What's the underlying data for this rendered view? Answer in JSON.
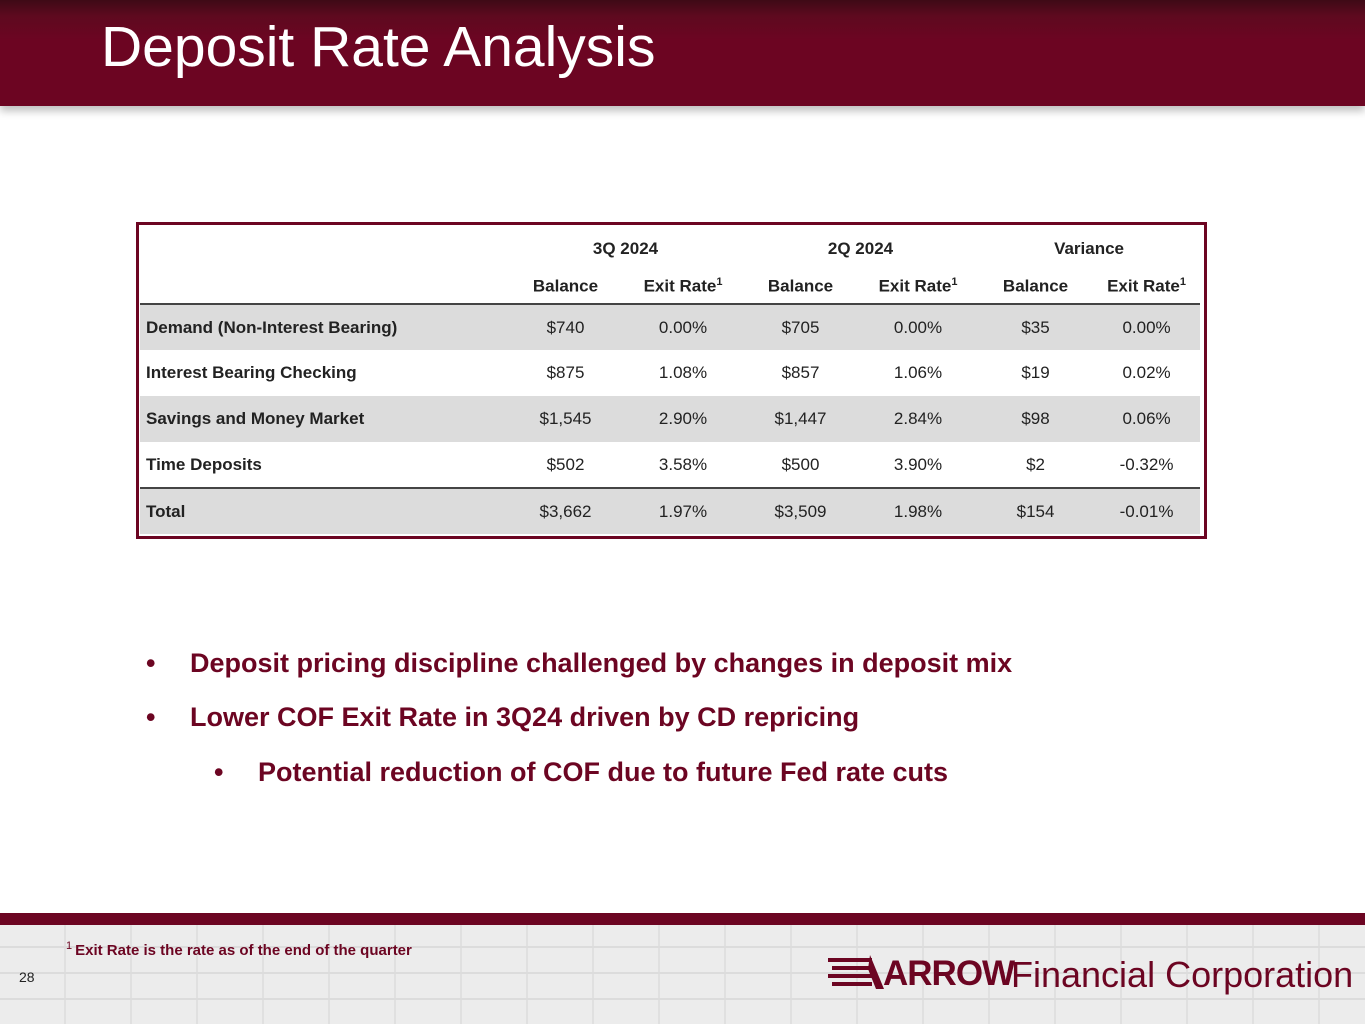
{
  "header": {
    "title": "Deposit Rate Analysis"
  },
  "table": {
    "groups": [
      "3Q 2024",
      "2Q 2024",
      "Variance"
    ],
    "subheaders": [
      {
        "label": "Balance",
        "sup": ""
      },
      {
        "label": "Exit Rate",
        "sup": "1"
      },
      {
        "label": "Balance",
        "sup": ""
      },
      {
        "label": "Exit Rate",
        "sup": "1"
      },
      {
        "label": "Balance",
        "sup": ""
      },
      {
        "label": "Exit Rate",
        "sup": "1"
      }
    ],
    "rows": [
      {
        "label": "Demand (Non-Interest Bearing)",
        "values": [
          "$740",
          "0.00%",
          "$705",
          "0.00%",
          "$35",
          "0.00%"
        ]
      },
      {
        "label": "Interest Bearing Checking",
        "values": [
          "$875",
          "1.08%",
          "$857",
          "1.06%",
          "$19",
          "0.02%"
        ]
      },
      {
        "label": "Savings and Money Market",
        "values": [
          "$1,545",
          "2.90%",
          "$1,447",
          "2.84%",
          "$98",
          "0.06%"
        ]
      },
      {
        "label": "Time Deposits",
        "values": [
          "$502",
          "3.58%",
          "$500",
          "3.90%",
          "$2",
          "-0.32%"
        ]
      },
      {
        "label": "Total",
        "values": [
          "$3,662",
          "1.97%",
          "$3,509",
          "1.98%",
          "$154",
          "-0.01%"
        ]
      }
    ]
  },
  "bullets": [
    {
      "marker": "•",
      "text": "Deposit pricing discipline challenged by changes in deposit mix"
    },
    {
      "marker": "•",
      "text": "Lower COF Exit Rate in 3Q24 driven by CD repricing"
    },
    {
      "marker": "•",
      "text": "Potential reduction of COF due to future Fed rate cuts"
    }
  ],
  "footer": {
    "footnote_sup": "1",
    "footnote": "Exit Rate is the rate as of the end of the quarter",
    "page_number": "28",
    "logo_brand": "ARROW",
    "logo_company": "Financial Corporation"
  },
  "colors": {
    "brand": "#6c0522",
    "row_shade": "#dcdcdc"
  }
}
